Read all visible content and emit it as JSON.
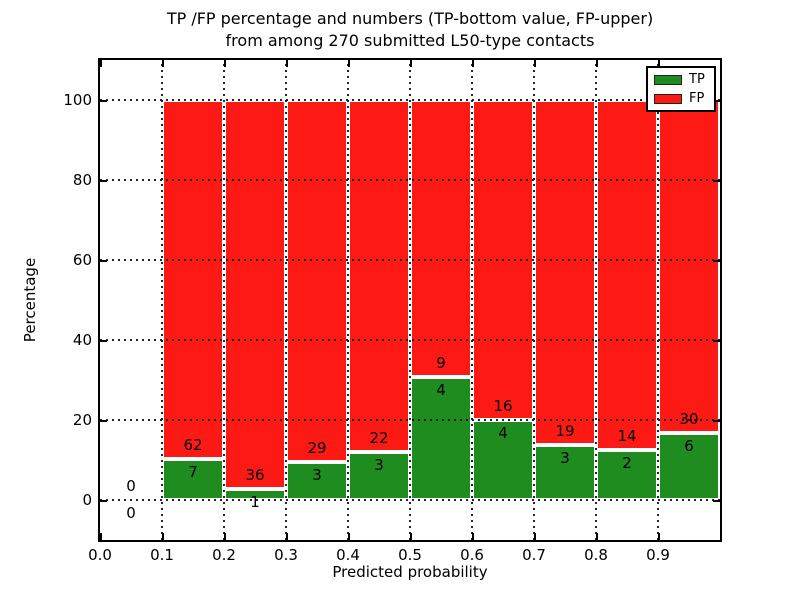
{
  "figure": {
    "title": "TP /FP percentage and numbers (TP-bottom value, FP-upper)\nfrom among 270 submitted L50-type contacts"
  },
  "chart_data": {
    "type": "bar",
    "stacked": true,
    "units": "percent",
    "title": "TP /FP percentage and numbers (TP-bottom value, FP-upper) from among 270 submitted L50-type contacts",
    "xlabel": "Predicted probability",
    "ylabel": "Percentage",
    "xlim": [
      0.0,
      1.0
    ],
    "ylim": [
      -10,
      110
    ],
    "x_ticks": [
      0.0,
      0.1,
      0.2,
      0.3,
      0.4,
      0.5,
      0.6,
      0.7,
      0.8,
      0.9
    ],
    "x_tick_labels": [
      "0.0",
      "0.1",
      "0.2",
      "0.3",
      "0.4",
      "0.5",
      "0.6",
      "0.7",
      "0.8",
      "0.9"
    ],
    "y_ticks": [
      0,
      20,
      40,
      60,
      80,
      100
    ],
    "y_tick_labels": [
      "0",
      "20",
      "40",
      "60",
      "80",
      "100"
    ],
    "grid": true,
    "grid_style": "dotted",
    "total_contacts": 270,
    "legend": {
      "position": "upper-right",
      "entries": [
        {
          "label": "TP",
          "color": "#1e8c1e"
        },
        {
          "label": "FP",
          "color": "#fd1a14"
        }
      ]
    },
    "series_note": "Counts annotated on bars: TP below boundary, FP above boundary; bars normalized to 100%",
    "bins": [
      {
        "range": [
          0.0,
          0.1
        ],
        "tp": 0,
        "fp": 0,
        "tp_pct": 0,
        "fp_pct": 0
      },
      {
        "range": [
          0.1,
          0.2
        ],
        "tp": 7,
        "fp": 62,
        "tp_pct": 10.14,
        "fp_pct": 89.86
      },
      {
        "range": [
          0.2,
          0.3
        ],
        "tp": 1,
        "fp": 36,
        "tp_pct": 2.7,
        "fp_pct": 97.3
      },
      {
        "range": [
          0.3,
          0.4
        ],
        "tp": 3,
        "fp": 29,
        "tp_pct": 9.38,
        "fp_pct": 90.62
      },
      {
        "range": [
          0.4,
          0.5
        ],
        "tp": 3,
        "fp": 22,
        "tp_pct": 12.0,
        "fp_pct": 88.0
      },
      {
        "range": [
          0.5,
          0.6
        ],
        "tp": 4,
        "fp": 9,
        "tp_pct": 30.77,
        "fp_pct": 69.23
      },
      {
        "range": [
          0.6,
          0.7
        ],
        "tp": 4,
        "fp": 16,
        "tp_pct": 20.0,
        "fp_pct": 80.0
      },
      {
        "range": [
          0.7,
          0.8
        ],
        "tp": 3,
        "fp": 19,
        "tp_pct": 13.64,
        "fp_pct": 86.36
      },
      {
        "range": [
          0.8,
          0.9
        ],
        "tp": 2,
        "fp": 14,
        "tp_pct": 12.5,
        "fp_pct": 87.5
      },
      {
        "range": [
          0.9,
          1.0
        ],
        "tp": 6,
        "fp": 30,
        "tp_pct": 16.67,
        "fp_pct": 83.33
      }
    ],
    "colors": {
      "tp": "#1e8c1e",
      "fp": "#fd1a14",
      "bar_edge": "#ffffff",
      "grid": "#000000",
      "text": "#000000",
      "background": "#ffffff"
    }
  }
}
